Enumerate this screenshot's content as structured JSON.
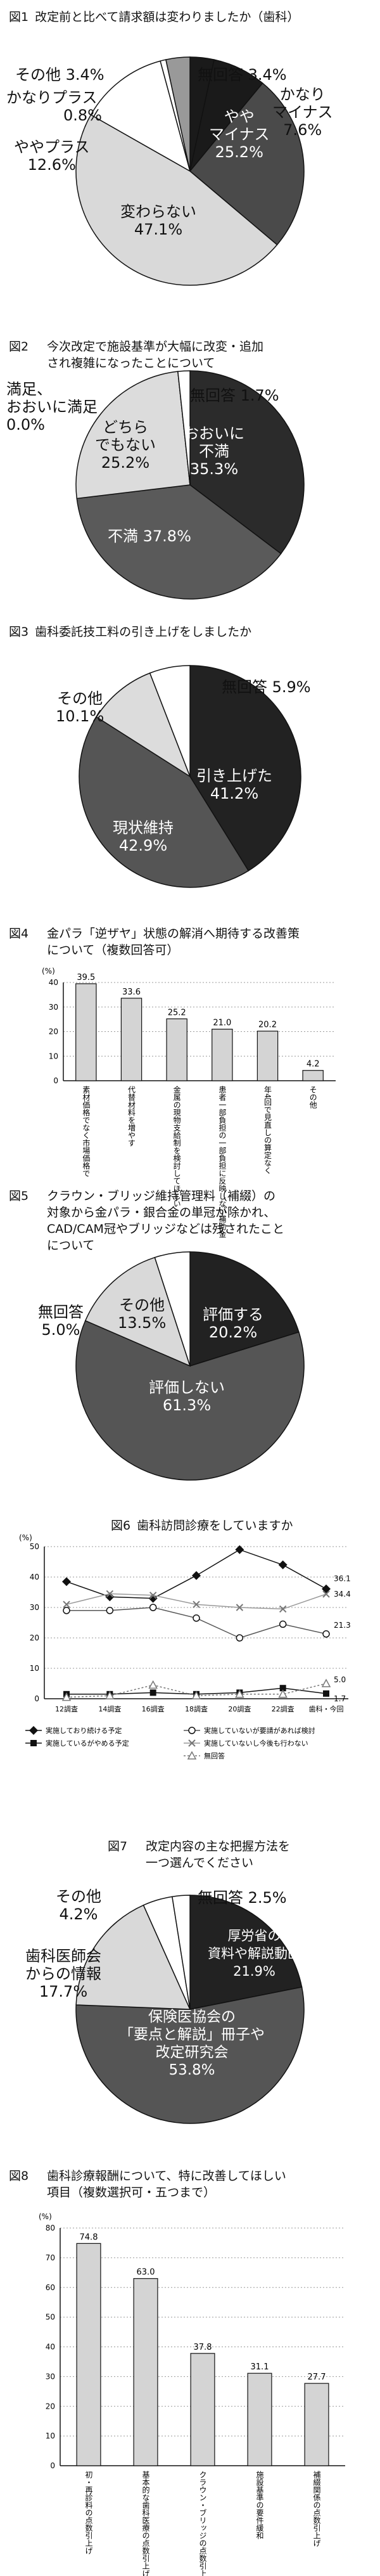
{
  "fig1": {
    "num": "図1",
    "title": "改定前と比べて請求額は変わりましたか（歯科）",
    "chart_data": {
      "type": "pie",
      "slices": [
        {
          "label": "無回答",
          "value": 3.4,
          "color": "#1a1a1a"
        },
        {
          "label": "かなりマイナス",
          "value": 7.6,
          "color": "#1a1a1a"
        },
        {
          "label": "ややマイナス",
          "value": 25.2,
          "color": "#4a4a4a"
        },
        {
          "label": "変わらない",
          "value": 47.1,
          "color": "#d9d9d9"
        },
        {
          "label": "ややプラス",
          "value": 12.6,
          "color": "#ffffff"
        },
        {
          "label": "かなりプラス",
          "value": 0.8,
          "color": "#ffffff"
        },
        {
          "label": "その他",
          "value": 3.4,
          "color": "#999999"
        }
      ]
    },
    "labels": {
      "noans": "無回答 3.4%",
      "kanari_minus_1": "かなり",
      "kanari_minus_2": "マイナス",
      "kanari_minus_3": "7.6%",
      "yaya_minus_1": "やや",
      "yaya_minus_2": "マイナス",
      "yaya_minus_3": "25.2%",
      "kawaranai_1": "変わらない",
      "kawaranai_2": "47.1%",
      "yaya_plus_1": "ややプラス",
      "yaya_plus_2": "12.6%",
      "kanari_plus_1": "かなりプラス",
      "kanari_plus_2": "0.8%",
      "other": "その他 3.4%"
    }
  },
  "fig2": {
    "num": "図2",
    "title": "今次改定で施設基準が大幅に改変・追加\nされ複雑になったことについて",
    "chart_data": {
      "type": "pie",
      "slices": [
        {
          "label": "おおいに不満",
          "value": 35.3,
          "color": "#2b2b2b"
        },
        {
          "label": "不満",
          "value": 37.8,
          "color": "#5a5a5a"
        },
        {
          "label": "どちらでもない",
          "value": 25.2,
          "color": "#dcdcdc"
        },
        {
          "label": "満足、おおいに満足",
          "value": 0.0,
          "color": "#ffffff"
        },
        {
          "label": "無回答",
          "value": 1.7,
          "color": "#ffffff"
        }
      ]
    },
    "labels": {
      "noans": "無回答 1.7%",
      "manzoku_1": "満足、",
      "manzoku_2": "おおいに満足",
      "manzoku_3": "0.0%",
      "dochira_1": "どちら",
      "dochira_2": "でもない",
      "dochira_3": "25.2%",
      "ooini_1": "おおいに",
      "ooini_2": "不満",
      "ooini_3": "35.3%",
      "fuman": "不満 37.8%"
    }
  },
  "fig3": {
    "num": "図3",
    "title": "歯科委託技工料の引き上げをしましたか",
    "chart_data": {
      "type": "pie",
      "slices": [
        {
          "label": "引き上げた",
          "value": 41.2,
          "color": "#222222"
        },
        {
          "label": "現状維持",
          "value": 42.9,
          "color": "#555555"
        },
        {
          "label": "その他",
          "value": 10.1,
          "color": "#dcdcdc"
        },
        {
          "label": "無回答",
          "value": 5.9,
          "color": "#ffffff"
        }
      ]
    },
    "labels": {
      "noans": "無回答 5.9%",
      "other_1": "その他",
      "other_2": "10.1%",
      "hikiage_1": "引き上げた",
      "hikiage_2": "41.2%",
      "genjo_1": "現状維持",
      "genjo_2": "42.9%"
    }
  },
  "fig4": {
    "num": "図4",
    "title": "金パラ「逆ザヤ」状態の解消へ期待する改善策\nについて（複数回答可）",
    "chart_data": {
      "type": "bar",
      "unit": "(%)",
      "ylim": [
        0,
        40
      ],
      "yticks": [
        "0",
        "10",
        "20",
        "30",
        "40"
      ],
      "categories": [
        "素材価格でなく市場価格で",
        "代替材料を増やす",
        "金属の現物支給制を検討してほしい",
        "患者一部負担の一部負担に反映しない補助金",
        "年4回で見直しの算定なく",
        "その他"
      ],
      "values": [
        39.5,
        33.6,
        25.2,
        21.0,
        20.2,
        4.2
      ],
      "value_labels": [
        "39.5",
        "33.6",
        "25.2",
        "21.0",
        "20.2",
        "4.2"
      ]
    }
  },
  "fig5": {
    "num": "図5",
    "title": "クラウン・ブリッジ維持管理料（補綴）の\n対象から金パラ・銀合金の単冠が除かれ、\nCAD/CAM冠やブリッジなどは残されたこと\nについて",
    "chart_data": {
      "type": "pie",
      "slices": [
        {
          "label": "評価する",
          "value": 20.2,
          "color": "#222222"
        },
        {
          "label": "評価しない",
          "value": 61.3,
          "color": "#555555"
        },
        {
          "label": "その他",
          "value": 13.5,
          "color": "#d9d9d9"
        },
        {
          "label": "無回答",
          "value": 5.0,
          "color": "#ffffff"
        }
      ]
    },
    "labels": {
      "noans_1": "無回答",
      "noans_2": "5.0%",
      "other_1": "その他",
      "other_2": "13.5%",
      "hyoka_1": "評価する",
      "hyoka_2": "20.2%",
      "hyokashinai_1": "評価しない",
      "hyokashinai_2": "61.3%"
    }
  },
  "fig6": {
    "num": "図6",
    "title": "歯科訪問診療をしていますか",
    "chart_data": {
      "type": "line",
      "unit": "(%)",
      "ylim": [
        0,
        50
      ],
      "yticks": [
        "0",
        "10",
        "20",
        "30",
        "40",
        "50"
      ],
      "x": [
        "12調査",
        "14調査",
        "16調査",
        "18調査",
        "20調査",
        "22調査",
        "歯科・今回"
      ],
      "series": [
        {
          "name": "実施しており続ける予定",
          "values": [
            38.5,
            33.5,
            33,
            40.5,
            49,
            44,
            36.1
          ],
          "marker": "diamond-fill"
        },
        {
          "name": "実施しているがやめる予定",
          "values": [
            1.5,
            1.5,
            2,
            1.5,
            2,
            3.5,
            1.7
          ],
          "marker": "square-fill"
        },
        {
          "name": "実施していないが要請があれば検討",
          "values": [
            29,
            29,
            30,
            26.5,
            20,
            24.5,
            21.3
          ],
          "marker": "circle-open"
        },
        {
          "name": "実施していないし今後も行わない",
          "values": [
            31,
            34.5,
            34,
            31,
            30,
            29.5,
            34.4
          ],
          "marker": "cross"
        },
        {
          "name": "無回答",
          "values": [
            0.5,
            1,
            4.5,
            1,
            1.5,
            1.5,
            5.0
          ],
          "marker": "triangle-open"
        }
      ],
      "end_labels": [
        "36.1",
        "34.4",
        "21.3",
        "5.0",
        "1.7"
      ]
    }
  },
  "fig7": {
    "num": "図7",
    "title": "改定内容の主な把握方法を\n一つ選んでください",
    "chart_data": {
      "type": "pie",
      "slices": [
        {
          "label": "厚労省の資料や解説動画",
          "value": 21.9,
          "color": "#222222"
        },
        {
          "label": "保険医協会の「要点と解説」冊子や改定研究会",
          "value": 53.8,
          "color": "#555555"
        },
        {
          "label": "歯科医師会からの情報",
          "value": 17.7,
          "color": "#d9d9d9"
        },
        {
          "label": "その他",
          "value": 4.2,
          "color": "#ffffff"
        },
        {
          "label": "無回答",
          "value": 2.5,
          "color": "#ffffff"
        }
      ]
    },
    "labels": {
      "noans": "無回答 2.5%",
      "other_1": "その他",
      "other_2": "4.2%",
      "ishikai_1": "歯科医師会",
      "ishikai_2": "からの情報",
      "ishikai_3": "17.7%",
      "koro_1": "厚労省の",
      "koro_2": "資料や解説動画",
      "koro_3": "21.9%",
      "kyokai_1": "保険医協会の",
      "kyokai_2": "「要点と解説」冊子や",
      "kyokai_3": "改定研究会",
      "kyokai_4": "53.8%"
    }
  },
  "fig8": {
    "num": "図8",
    "title": "歯科診療報酬について、特に改善してほしい\n項目（複数選択可・五つまで）",
    "chart_data": {
      "type": "bar",
      "unit": "(%)",
      "ylim": [
        0,
        80
      ],
      "yticks": [
        "0",
        "10",
        "20",
        "30",
        "40",
        "50",
        "60",
        "70",
        "80"
      ],
      "categories": [
        "初・再診料の点数引上げ",
        "基本的な歯科医療の点数引上げ",
        "クラウン・ブリッジの点数引上げ",
        "施設基準の要件緩和",
        "補綴関係の点数引上げ"
      ],
      "values": [
        74.8,
        63.0,
        37.8,
        31.1,
        27.7
      ],
      "value_labels": [
        "74.8",
        "63.0",
        "37.8",
        "31.1",
        "27.7"
      ]
    }
  }
}
